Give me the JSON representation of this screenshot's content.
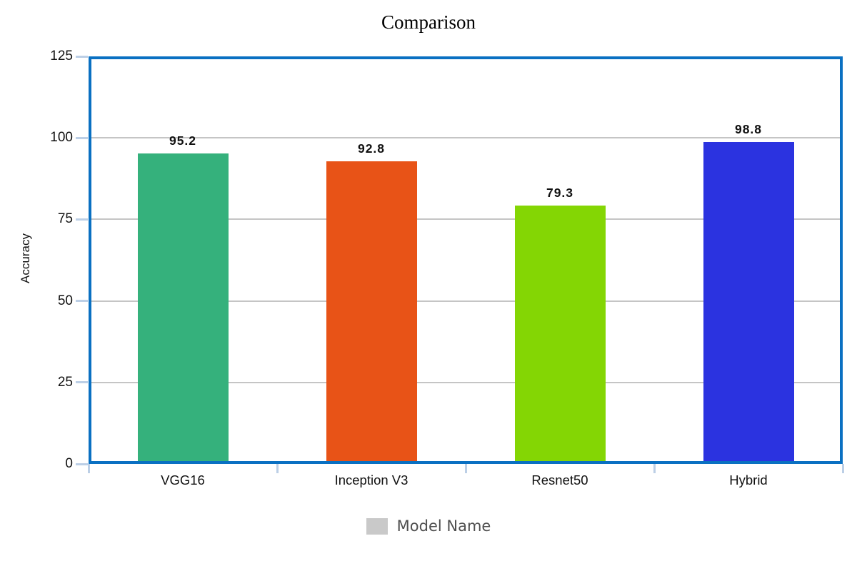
{
  "chart_data": {
    "type": "bar",
    "title": "Comparison",
    "categories": [
      "VGG16",
      "Inception V3",
      "Resnet50",
      "Hybrid"
    ],
    "values": [
      95.2,
      92.8,
      79.3,
      98.8
    ],
    "value_labels": [
      "95.2",
      "92.8",
      "79.3",
      "98.8"
    ],
    "bar_colors": [
      "#35b17c",
      "#e85317",
      "#84d604",
      "#2b33e0"
    ],
    "ylabel": "Accuracy",
    "ylim": [
      0,
      125
    ],
    "yticks": [
      0,
      25,
      50,
      75,
      100,
      125
    ],
    "grid": "horizontal-only",
    "legend": {
      "label": "Model Name",
      "swatch_color": "#c9c9c9",
      "position": "bottom-center"
    }
  },
  "colors": {
    "plot_border": "#0a70c2",
    "gridline": "#c5c5c5",
    "tick_mark": "#bccfe6",
    "axis_text": "#111111",
    "legend_text": "#4f4f4f",
    "background": "#ffffff"
  }
}
